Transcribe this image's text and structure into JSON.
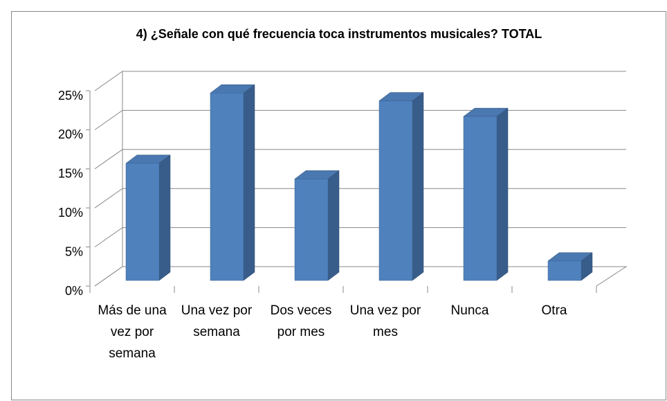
{
  "chart_data": {
    "type": "bar3d",
    "title": "4) ¿Señale con qué frecuencia toca instrumentos musicales? TOTAL",
    "categories": [
      "Más de una vez por semana",
      "Una vez por semana",
      "Dos veces por mes",
      "Una vez por mes",
      "Nunca",
      "Otra"
    ],
    "values": [
      15,
      24,
      13,
      23,
      21,
      2.5
    ],
    "color": "#4f81bd",
    "ylim": [
      0,
      25
    ],
    "yticks": [
      {
        "value": 0,
        "label": "0%"
      },
      {
        "value": 5,
        "label": "5%"
      },
      {
        "value": 10,
        "label": "10%"
      },
      {
        "value": 15,
        "label": "15%"
      },
      {
        "value": 20,
        "label": "20%"
      },
      {
        "value": 25,
        "label": "25%"
      }
    ],
    "grid": true
  }
}
